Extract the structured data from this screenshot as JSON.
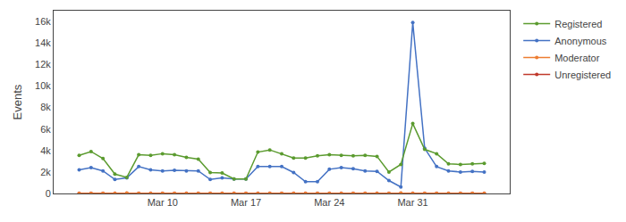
{
  "chart_data": {
    "type": "line",
    "ylabel": "Events",
    "categories": [
      null,
      null,
      null,
      null,
      null,
      null,
      null,
      "Mar 10",
      null,
      null,
      null,
      null,
      null,
      null,
      "Mar 17",
      null,
      null,
      null,
      null,
      null,
      null,
      "Mar 24",
      null,
      null,
      null,
      null,
      null,
      null,
      "Mar 31",
      null,
      null,
      null,
      null,
      null,
      null
    ],
    "series": [
      {
        "name": "Registered",
        "color": "#5b9b2f",
        "values": [
          3550,
          3900,
          3250,
          1800,
          1500,
          3600,
          3550,
          3700,
          3600,
          3350,
          3200,
          1950,
          1900,
          1350,
          1350,
          3850,
          4050,
          3700,
          3300,
          3300,
          3500,
          3600,
          3550,
          3500,
          3550,
          3450,
          2000,
          2700,
          6500,
          4100,
          3700,
          2750,
          2700,
          2750,
          2800
        ]
      },
      {
        "name": "Anonymous",
        "color": "#4472c4",
        "values": [
          2200,
          2400,
          2100,
          1300,
          1450,
          2500,
          2200,
          2100,
          2150,
          2100,
          2100,
          1300,
          1450,
          1350,
          1350,
          2500,
          2500,
          2500,
          1950,
          1100,
          1100,
          2250,
          2400,
          2300,
          2100,
          2050,
          1200,
          600,
          15900,
          4200,
          2500,
          2100,
          2000,
          2050,
          2000
        ]
      },
      {
        "name": "Moderator",
        "color": "#ed7d31",
        "values": [
          10,
          10,
          10,
          10,
          50,
          10,
          10,
          10,
          10,
          10,
          10,
          10,
          10,
          10,
          10,
          10,
          10,
          10,
          10,
          10,
          10,
          10,
          10,
          10,
          10,
          10,
          10,
          50,
          10,
          10,
          10,
          10,
          10,
          10,
          10
        ]
      },
      {
        "name": "Unregistered",
        "color": "#c0392b",
        "values": [
          20,
          20,
          20,
          20,
          20,
          20,
          20,
          20,
          20,
          20,
          20,
          20,
          20,
          20,
          20,
          20,
          20,
          20,
          20,
          20,
          20,
          20,
          20,
          20,
          20,
          20,
          20,
          20,
          20,
          20,
          20,
          20,
          20,
          20,
          20
        ]
      }
    ],
    "ylim": [
      0,
      17000
    ],
    "yticks": [
      0,
      {
        "value": 2000,
        "label": "2k"
      },
      {
        "value": 4000,
        "label": "4k"
      },
      {
        "value": 6000,
        "label": "6k"
      },
      {
        "value": 8000,
        "label": "8k"
      },
      {
        "value": 10000,
        "label": "10k"
      },
      {
        "value": 12000,
        "label": "12k"
      },
      {
        "value": 14000,
        "label": "14k"
      },
      {
        "value": 16000,
        "label": "16k"
      }
    ],
    "grid": false,
    "legend": "right",
    "marker": "circle",
    "line_style": "solid"
  }
}
